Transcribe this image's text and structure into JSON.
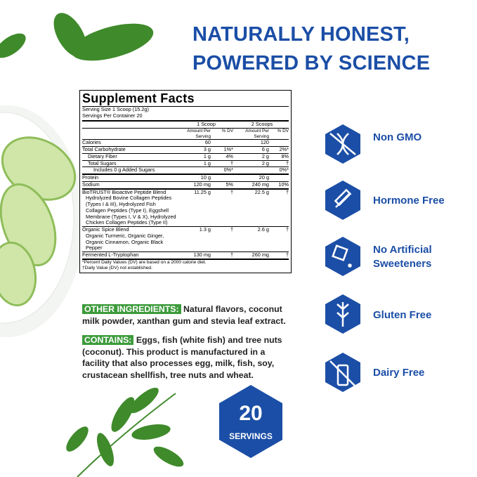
{
  "header": {
    "title_line1": "NATURALLY HONEST,",
    "title_line2": "POWERED BY SCIENCE"
  },
  "facts": {
    "title": "Supplement Facts",
    "serving_size": "Serving Size 1 Scoop (15.2g)",
    "servings_per_container": "Servings Per Container 20",
    "columns": [
      "1 Scoop",
      "2 Scoops"
    ],
    "subheads": [
      "Amount Per Serving",
      "% DV",
      "Amount Per Serving",
      "% DV"
    ],
    "rows": [
      {
        "name": "Calories",
        "amount1": "60",
        "amount2": "120"
      },
      {
        "name": "Total Carbohydrate",
        "amount1": "3 g",
        "dv1": "1%*",
        "amount2": "6 g",
        "dv2": "2%*"
      },
      {
        "name": "Dietary Fiber",
        "amount1": "1 g",
        "dv1": "4%",
        "amount2": "2 g",
        "dv2": "8%"
      },
      {
        "name": "Total Sugars",
        "amount1": "1 g",
        "dv1": "†",
        "amount2": "2 g",
        "dv2": "†"
      },
      {
        "name": "Includes 0 g Added Sugars",
        "dv1": "0%*",
        "dv2": "0%*"
      },
      {
        "name": "Protein",
        "amount1": "10 g",
        "amount2": "20 g"
      },
      {
        "name": "Sodium",
        "amount1": "120 mg",
        "dv1": "5%",
        "amount2": "240 mg",
        "dv2": "10%"
      },
      {
        "name": "BioTRUST® Bioactive Peptide Blend",
        "description": "Hydrolyzed Bovine Collagen Peptides (Types I & III), Hydrolyzed Fish Collagen Peptides (Type I), Eggshell Membrane (Types I, V & X), Hydrolyzed Chicken Collagen Peptides (Type II)",
        "amount1": "11.25 g",
        "dv1": "†",
        "amount2": "22.5 g",
        "dv2": "†"
      },
      {
        "name": "Organic Spice Blend",
        "description": "Organic Turmeric, Organic Ginger, Organic Cinnamon, Organic Black Pepper",
        "amount1": "1.3 g",
        "dv1": "†",
        "amount2": "2.6 g",
        "dv2": "†"
      },
      {
        "name": "Fermented L-Tryptophan",
        "amount1": "130 mg",
        "dv1": "†",
        "amount2": "260 mg",
        "dv2": "†"
      }
    ],
    "footnotes": [
      "*Percent Daily Values (DV) are based on a 2000 calorie diet.",
      "†Daily Value (DV) not established."
    ]
  },
  "other_ingredients": {
    "label": "OTHER INGREDIENTS:",
    "text": "Natural flavors, coconut milk powder, xanthan gum and stevia leaf extract."
  },
  "contains": {
    "label": "CONTAINS:",
    "text": "Eggs, fish (white fish) and tree nuts (coconut). This product is manufactured in a facility that also processes egg, milk, fish, soy, crustacean shellfish, tree nuts and wheat."
  },
  "servings_badge": {
    "number": 20,
    "label": "SERVINGS"
  },
  "claims": [
    "Non GMO",
    "Hormone Free",
    "No Artificial Sweeteners",
    "Gluten Free",
    "Dairy Free"
  ]
}
